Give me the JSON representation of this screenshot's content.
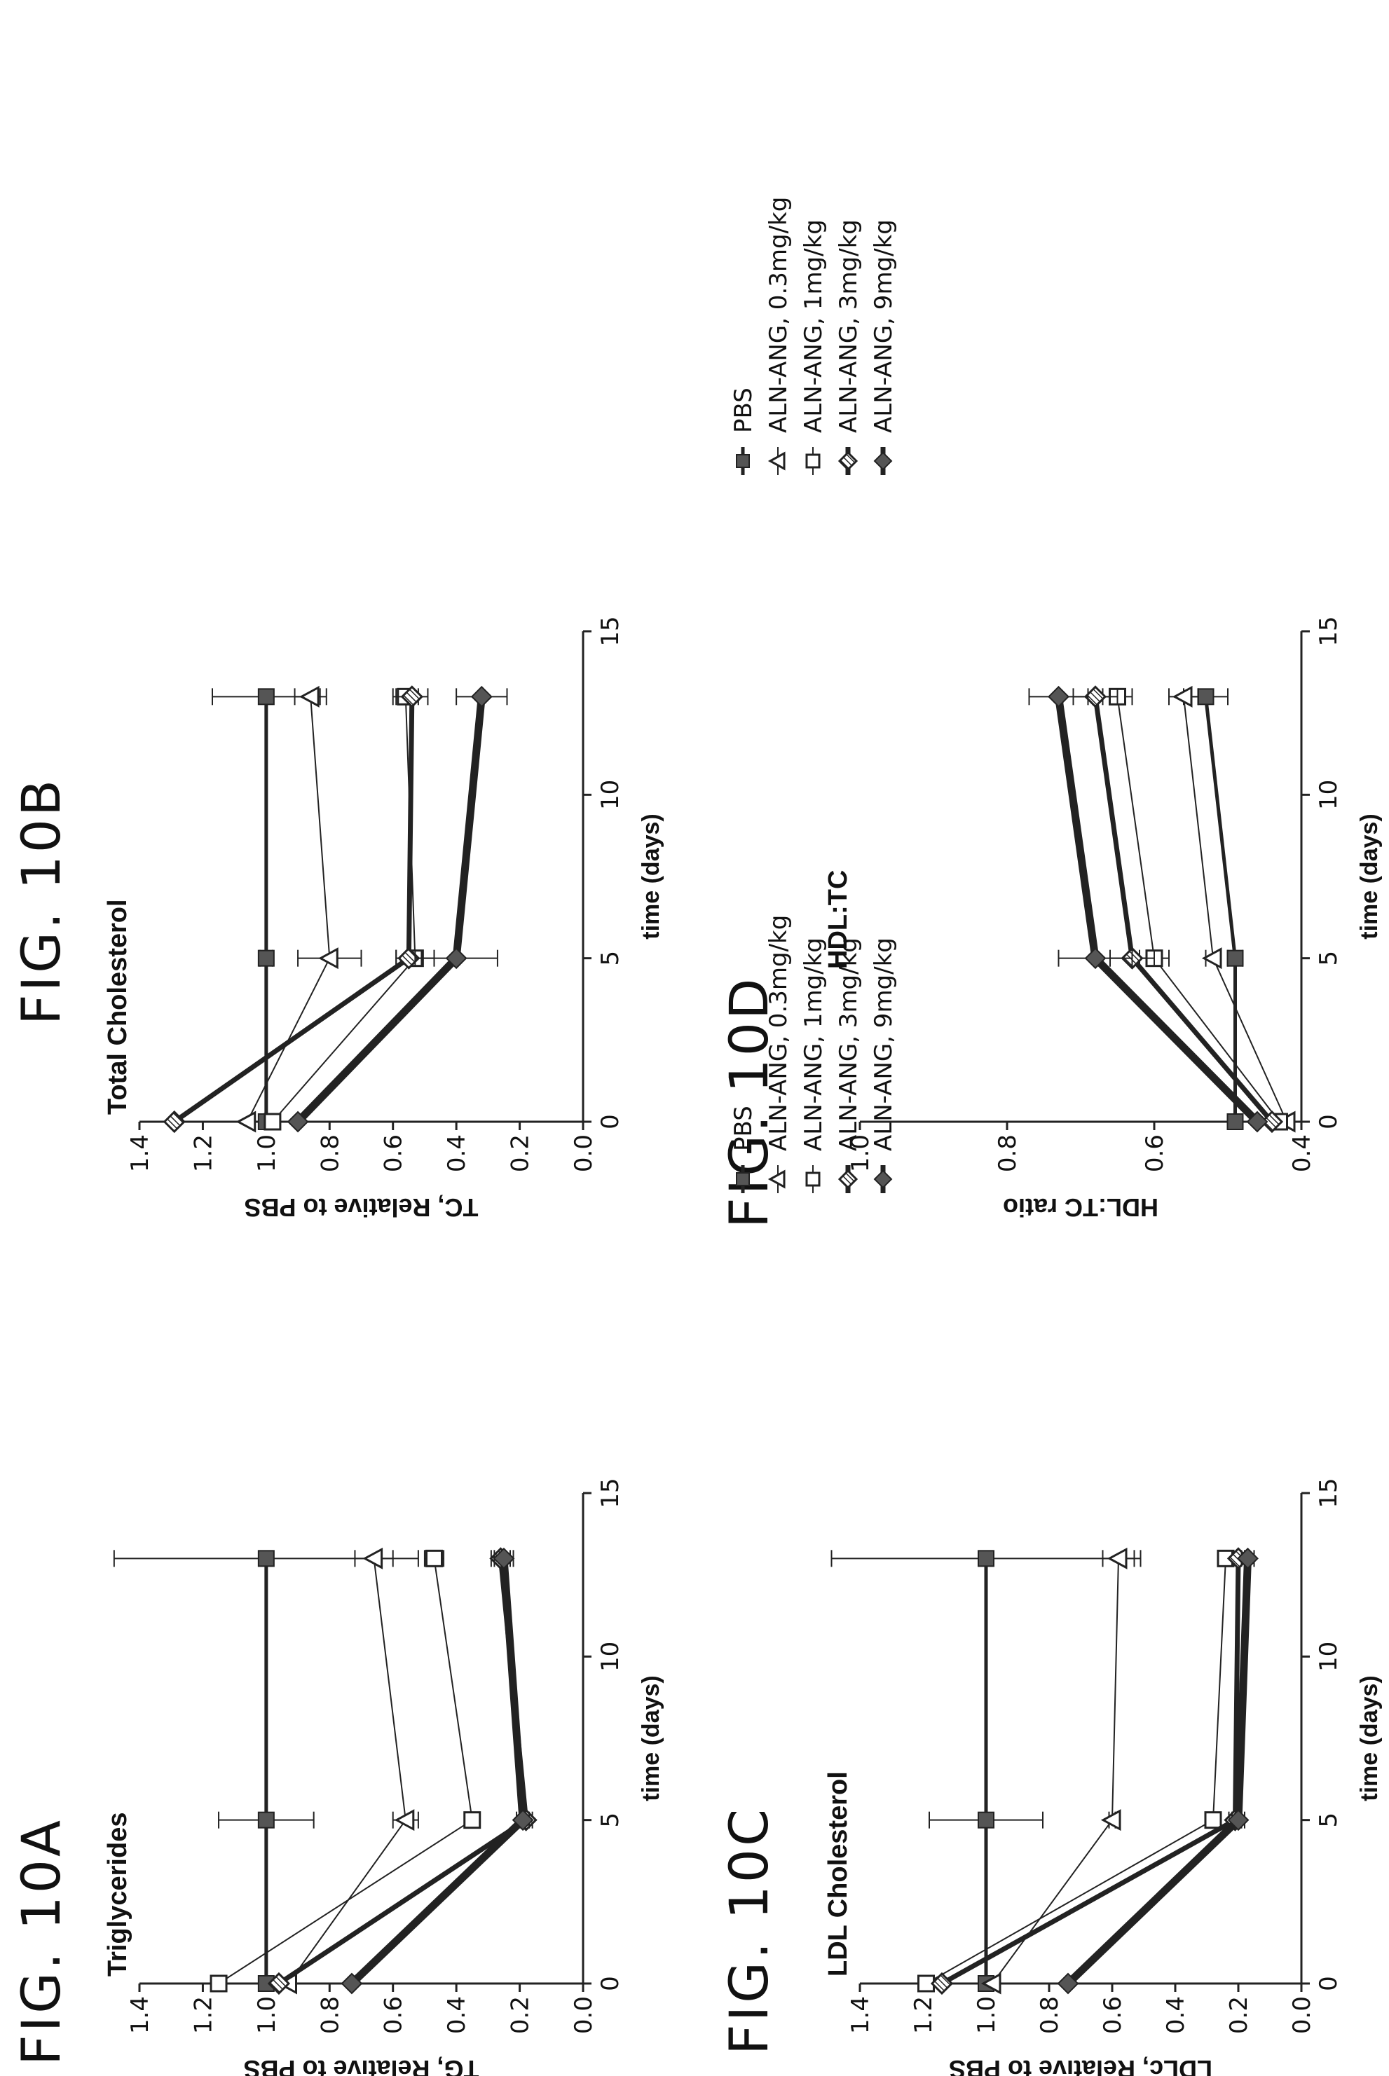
{
  "chart_data": [
    {
      "fig": "FIG. 10A",
      "title": "Triglycerides",
      "type": "line",
      "xlabel": "time (days)",
      "ylabel": "TG, Relative to PBS",
      "xlim": [
        0,
        15
      ],
      "xticks": [
        0,
        5,
        10,
        15
      ],
      "ylim": [
        0,
        1.4
      ],
      "yticks": [
        0.0,
        0.2,
        0.4,
        0.6,
        0.8,
        1.0,
        1.2,
        1.4
      ],
      "ytick_decimals": 1,
      "x": [
        0,
        5,
        13
      ],
      "series": [
        {
          "name": "PBS",
          "values": [
            1.0,
            1.0,
            1.0
          ],
          "err": [
            0,
            0.15,
            0.48
          ]
        },
        {
          "name": "ALN-ANG, 0.3mg/kg",
          "values": [
            0.93,
            0.56,
            0.66
          ],
          "err": [
            0,
            0.04,
            0.06
          ]
        },
        {
          "name": "ALN-ANG, 1mg/kg",
          "values": [
            1.15,
            0.35,
            0.47
          ],
          "err": [
            0,
            0.02,
            0.03
          ]
        },
        {
          "name": "ALN-ANG, 3mg/kg",
          "values": [
            0.96,
            0.18,
            0.26
          ],
          "err": [
            0,
            0.02,
            0.03
          ]
        },
        {
          "name": "ALN-ANG, 9mg/kg",
          "values": [
            0.73,
            0.19,
            0.25
          ],
          "err": [
            0,
            0.02,
            0.03
          ]
        }
      ]
    },
    {
      "fig": "FIG. 10B",
      "title": "Total Cholesterol",
      "type": "line",
      "xlabel": "time (days)",
      "ylabel": "TC, Relative to PBS",
      "xlim": [
        0,
        15
      ],
      "xticks": [
        0,
        5,
        10,
        15
      ],
      "ylim": [
        0,
        1.4
      ],
      "yticks": [
        0.0,
        0.2,
        0.4,
        0.6,
        0.8,
        1.0,
        1.2,
        1.4
      ],
      "ytick_decimals": 1,
      "x": [
        0,
        5,
        13
      ],
      "series": [
        {
          "name": "PBS",
          "values": [
            1.0,
            1.0,
            1.0
          ],
          "err": [
            0,
            0.02,
            0.17
          ]
        },
        {
          "name": "ALN-ANG, 0.3mg/kg",
          "values": [
            1.06,
            0.8,
            0.86
          ],
          "err": [
            0,
            0.1,
            0.05
          ]
        },
        {
          "name": "ALN-ANG, 1mg/kg",
          "values": [
            0.98,
            0.53,
            0.56
          ],
          "err": [
            0,
            0.06,
            0.04
          ]
        },
        {
          "name": "ALN-ANG, 3mg/kg",
          "values": [
            1.29,
            0.55,
            0.54
          ],
          "err": [
            0,
            0.04,
            0.05
          ]
        },
        {
          "name": "ALN-ANG, 9mg/kg",
          "values": [
            0.9,
            0.4,
            0.32
          ],
          "err": [
            0,
            0.13,
            0.08
          ]
        }
      ]
    },
    {
      "fig": "FIG. 10C",
      "title": "LDL Cholesterol",
      "type": "line",
      "xlabel": "time (days)",
      "ylabel": "LDLc, Relative to PBS",
      "xlim": [
        0,
        15
      ],
      "xticks": [
        0,
        5,
        10,
        15
      ],
      "ylim": [
        0,
        1.4
      ],
      "yticks": [
        0.0,
        0.2,
        0.4,
        0.6,
        0.8,
        1.0,
        1.2,
        1.4
      ],
      "ytick_decimals": 1,
      "x": [
        0,
        5,
        13
      ],
      "series": [
        {
          "name": "PBS",
          "values": [
            1.0,
            1.0,
            1.0
          ],
          "err": [
            0,
            0.18,
            0.49
          ]
        },
        {
          "name": "ALN-ANG, 0.3mg/kg",
          "values": [
            0.98,
            0.6,
            0.58
          ],
          "err": [
            0,
            0.01,
            0.05
          ]
        },
        {
          "name": "ALN-ANG, 1mg/kg",
          "values": [
            1.19,
            0.28,
            0.24
          ],
          "err": [
            0,
            0.02,
            0.02
          ]
        },
        {
          "name": "ALN-ANG, 3mg/kg",
          "values": [
            1.14,
            0.21,
            0.2
          ],
          "err": [
            0,
            0.02,
            0.02
          ]
        },
        {
          "name": "ALN-ANG, 9mg/kg",
          "values": [
            0.74,
            0.2,
            0.17
          ],
          "err": [
            0,
            0.02,
            0.02
          ]
        }
      ]
    },
    {
      "fig": "FIG. 10D",
      "title": "HDL:TC",
      "type": "line",
      "xlabel": "time (days)",
      "ylabel": "HDL:TC ratio",
      "xlim": [
        0,
        15
      ],
      "xticks": [
        0,
        5,
        10,
        15
      ],
      "ylim": [
        0.4,
        1.0
      ],
      "yticks": [
        0.4,
        0.6,
        0.8,
        1.0
      ],
      "ytick_decimals": 1,
      "x": [
        0,
        5,
        13
      ],
      "series": [
        {
          "name": "PBS",
          "values": [
            0.49,
            0.49,
            0.53
          ],
          "err": [
            0,
            0.01,
            0.03
          ]
        },
        {
          "name": "ALN-ANG, 0.3mg/kg",
          "values": [
            0.42,
            0.52,
            0.56
          ],
          "err": [
            0,
            0.01,
            0.02
          ]
        },
        {
          "name": "ALN-ANG, 1mg/kg",
          "values": [
            0.43,
            0.6,
            0.65
          ],
          "err": [
            0,
            0.02,
            0.02
          ]
        },
        {
          "name": "ALN-ANG, 3mg/kg",
          "values": [
            0.44,
            0.63,
            0.68
          ],
          "err": [
            0,
            0.03,
            0.03
          ]
        },
        {
          "name": "ALN-ANG, 9mg/kg",
          "values": [
            0.46,
            0.68,
            0.73
          ],
          "err": [
            0,
            0.05,
            0.04
          ]
        }
      ]
    }
  ],
  "styles": {
    "line_color": "#222222",
    "filled_marker_color": "#555555",
    "series": [
      {
        "marker": "square-filled",
        "line_width": 5
      },
      {
        "marker": "triangle-open",
        "line_width": 2
      },
      {
        "marker": "square-open",
        "line_width": 2
      },
      {
        "marker": "diamond-hatched",
        "line_width": 7
      },
      {
        "marker": "diamond-filled",
        "line_width": 11
      }
    ]
  }
}
